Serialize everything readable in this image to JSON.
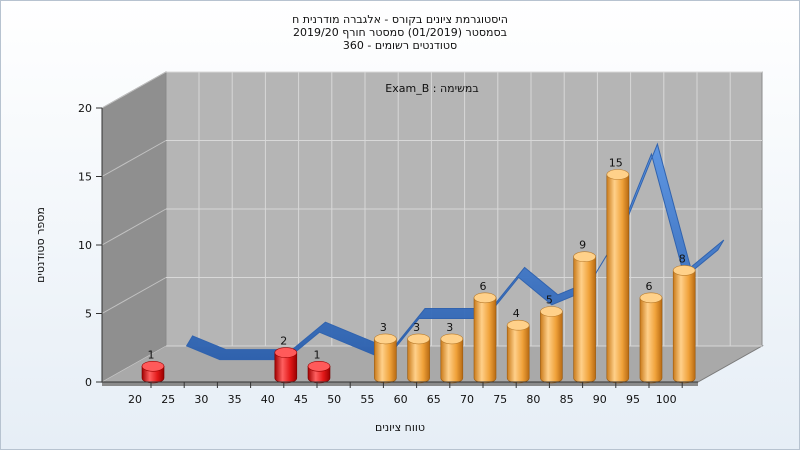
{
  "titles": {
    "line1": "היסטוגרמת ציונים בקורס - אלגברה מודרנית ח",
    "line2": "בסמסטר  (01/2019)  סמסטר חורף 2019/20",
    "line3": "סטודנטים רשומים - 360"
  },
  "colors": {
    "red_bar": "#e02020",
    "orange_bar": "#f2a63a",
    "ribbon_blue": "#2f6fc6",
    "ribbon_gray": "#6a6a6a",
    "back_wall": "#b5b5b5",
    "left_wall": "#8f8f8f",
    "floor": "#a9a9a9"
  },
  "chart_data": {
    "type": "bar",
    "title": "",
    "subtitle": "במשימה : Exam_B",
    "xlabel": "טווח ציונים",
    "ylabel": "מספר סטודנטים",
    "ylim": [
      0,
      20
    ],
    "yticks": [
      "0",
      "5",
      "10",
      "15",
      "20"
    ],
    "grid": true,
    "categories": [
      "20",
      "25",
      "30",
      "35",
      "40",
      "45",
      "50",
      "55",
      "60",
      "65",
      "70",
      "75",
      "80",
      "85",
      "90",
      "95",
      "100"
    ],
    "values": [
      1,
      0,
      0,
      0,
      2,
      1,
      0,
      3,
      3,
      3,
      6,
      4,
      5,
      9,
      15,
      6,
      8
    ],
    "value_labels": [
      "1",
      "",
      "",
      "",
      "2",
      "1",
      "",
      "3",
      "3",
      "3",
      "6",
      "4",
      "5",
      "9",
      "15",
      "6",
      "8"
    ],
    "bar_colors": [
      "red",
      "",
      "",
      "",
      "red",
      "red",
      "",
      "orange",
      "orange",
      "orange",
      "orange",
      "orange",
      "orange",
      "orange",
      "orange",
      "orange",
      "orange"
    ]
  }
}
